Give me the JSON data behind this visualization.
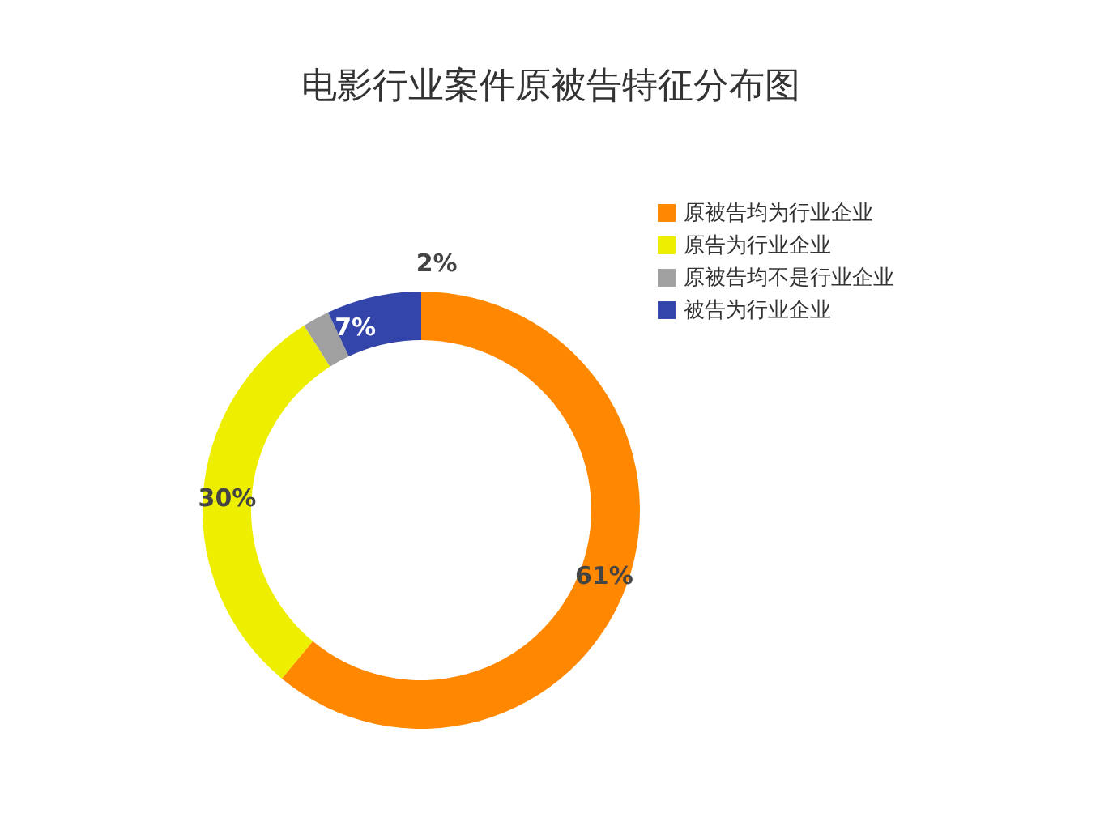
{
  "chart_data": {
    "type": "donut",
    "title": "电影行业案件原被告特征分布图",
    "categories": [
      "原被告均为行业企业",
      "原告为行业企业",
      "原被告均不是行业企业",
      "被告为行业企业"
    ],
    "values": [
      61,
      30,
      2,
      7
    ],
    "value_labels": [
      "61%",
      "30%",
      "2%",
      "7%"
    ],
    "colors": [
      "#ff8800",
      "#eeee00",
      "#a0a0a0",
      "#3344aa"
    ],
    "legend": "top right"
  }
}
